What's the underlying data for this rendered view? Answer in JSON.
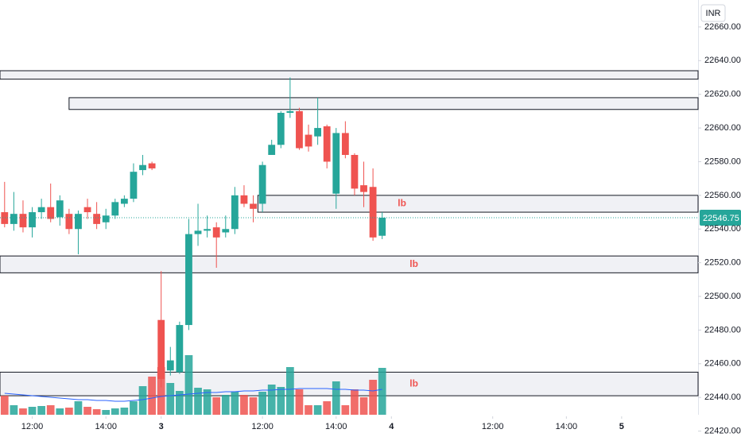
{
  "chart_data": {
    "type": "candlestick",
    "currency": "INR",
    "last_price": 22546.75,
    "last_price_label": "22546.75",
    "up_color": "#26a69a",
    "down_color": "#ef5350",
    "ma_color": "#2962ff",
    "ylim": [
      22416.5,
      22676
    ],
    "yticks": [
      {
        "value": 22420,
        "label": "22420.00"
      },
      {
        "value": 22440,
        "label": "22440.00"
      },
      {
        "value": 22460,
        "label": "22460.00"
      },
      {
        "value": 22480,
        "label": "22480.00"
      },
      {
        "value": 22500,
        "label": "22500.00"
      },
      {
        "value": 22520,
        "label": "22520.00"
      },
      {
        "value": 22540,
        "label": "22540.00"
      },
      {
        "value": 22560,
        "label": "22560.00"
      },
      {
        "value": 22580,
        "label": "22580.00"
      },
      {
        "value": 22600,
        "label": "22600.00"
      },
      {
        "value": 22620,
        "label": "22620.00"
      },
      {
        "value": 22640,
        "label": "22640.00"
      },
      {
        "value": 22660,
        "label": "22660.00"
      }
    ],
    "xlim": [
      -0.5,
      75.3
    ],
    "xticks": [
      {
        "value": 3,
        "label": "12:00"
      },
      {
        "value": 11,
        "label": "14:00"
      },
      {
        "value": 17,
        "label": "3"
      },
      {
        "value": 28,
        "label": "12:00"
      },
      {
        "value": 36,
        "label": "14:00"
      },
      {
        "value": 42,
        "label": "4"
      },
      {
        "value": 53,
        "label": "12:00"
      },
      {
        "value": 61,
        "label": "14:00"
      },
      {
        "value": 67,
        "label": "5"
      }
    ],
    "open": [
      22550,
      22543,
      22549,
      22541,
      22550,
      22553,
      22547,
      22549,
      22540,
      22553,
      22549,
      22544,
      22548,
      22555,
      22558,
      22575,
      22579,
      22486,
      22456,
      22455,
      22483,
      22537,
      22539,
      22541,
      22538,
      22540,
      22560,
      22555,
      22555,
      22584,
      22590,
      22609,
      22610,
      22596,
      22595,
      22601,
      22561,
      22597,
      22584,
      22566,
      22565,
      22536
    ],
    "high": [
      22568,
      22562,
      22557,
      22553,
      22558,
      22567,
      22560,
      22552,
      22551,
      22558,
      22556,
      22552,
      22558,
      22560,
      22579,
      22584,
      22580,
      22515,
      22470,
      22485,
      22546,
      22555,
      22548,
      22544,
      22548,
      22565,
      22566,
      22560,
      22580,
      22593,
      22610,
      22630,
      22612,
      22602,
      22618,
      22602,
      22600,
      22604,
      22585,
      22580,
      22576,
      22550
    ],
    "low": [
      22541,
      22539,
      22538,
      22535,
      22546,
      22544,
      22542,
      22537,
      22525,
      22546,
      22540,
      22540,
      22546,
      22553,
      22556,
      22572,
      22575,
      22446,
      22453,
      22454,
      22480,
      22530,
      22535,
      22517,
      22535,
      22537,
      22553,
      22544,
      22550,
      22584,
      22588,
      22606,
      22587,
      22586,
      22590,
      22576,
      22552,
      22582,
      22560,
      22553,
      22533,
      22534
    ],
    "close": [
      22543,
      22549,
      22541,
      22550,
      22553,
      22546,
      22557,
      22540,
      22549,
      22550,
      22543,
      22548,
      22556,
      22558,
      22574,
      22578,
      22576,
      22451,
      22462,
      22483,
      22537,
      22539,
      22540,
      22535,
      22540,
      22560,
      22555,
      22552,
      22578,
      22590,
      22609,
      22610,
      22588,
      22589,
      22600,
      22580,
      22597,
      22584,
      22564,
      22562,
      22535,
      22546.75
    ],
    "volumes": [
      24,
      12,
      8,
      10,
      11,
      12,
      8,
      9,
      17,
      10,
      7,
      6,
      8,
      9,
      17,
      36,
      48,
      60,
      40,
      30,
      75,
      34,
      32,
      22,
      25,
      29,
      25,
      22,
      29,
      38,
      35,
      60,
      32,
      12,
      12,
      17,
      42,
      12,
      32,
      22,
      44,
      59
    ],
    "volume_ma": [
      27,
      26,
      25,
      24,
      23,
      22,
      21,
      20,
      19,
      19,
      18,
      18,
      17,
      17,
      18,
      19,
      21,
      23,
      24,
      25,
      26,
      27,
      28,
      28,
      29,
      29,
      30,
      30,
      31,
      31,
      32,
      32,
      33,
      33,
      33,
      33,
      32,
      32,
      31,
      31,
      30,
      32
    ],
    "zones": [
      {
        "low": 22629,
        "high": 22634,
        "start": -0.5
      },
      {
        "low": 22611,
        "high": 22618,
        "start": 7
      },
      {
        "low": 22550,
        "high": 22560,
        "start": 27.5,
        "label": "lb"
      },
      {
        "low": 22514,
        "high": 22524,
        "start": -0.5,
        "label": "lb"
      },
      {
        "low": 22441,
        "high": 22455,
        "start": -0.5,
        "label": "lb"
      }
    ]
  }
}
